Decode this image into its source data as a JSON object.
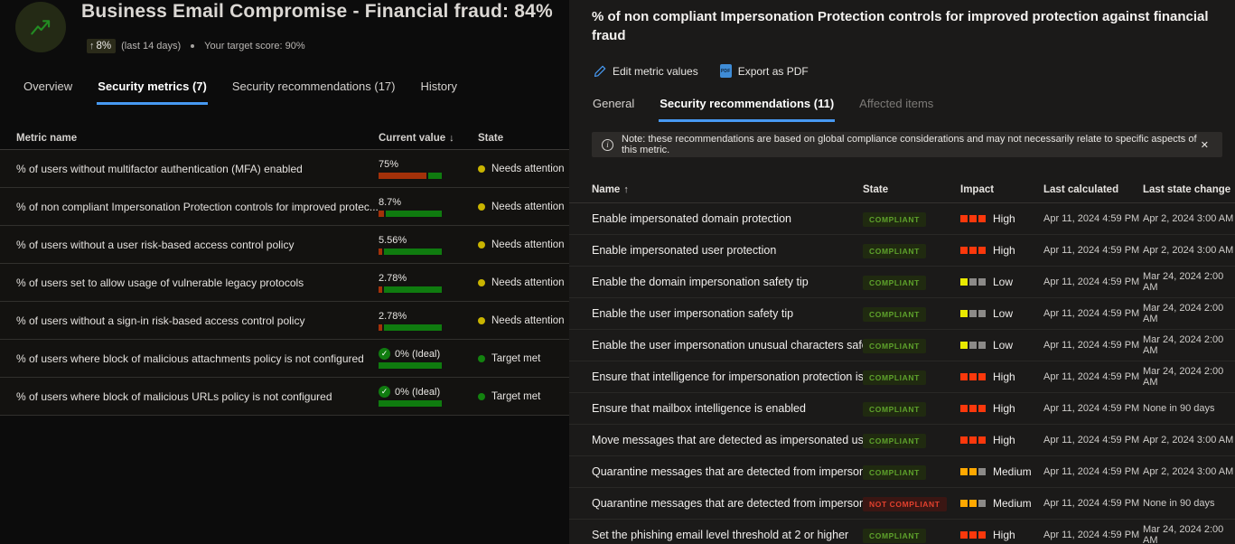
{
  "left": {
    "title": "Business Email Compromise - Financial fraud: 84%",
    "trend_arrow": "↑",
    "trend_delta": "8%",
    "trend_period": "(last 14 days)",
    "target_label": "Your target score: 90%",
    "tabs": [
      {
        "label": "Overview",
        "active": false
      },
      {
        "label": "Security metrics (7)",
        "active": true
      },
      {
        "label": "Security recommendations (17)",
        "active": false
      },
      {
        "label": "History",
        "active": false
      }
    ],
    "table": {
      "col_name": "Metric name",
      "col_value": "Current value",
      "col_value_sort": "↓",
      "col_state": "State",
      "rows": [
        {
          "name": "% of users without multifactor authentication (MFA) enabled",
          "value": "75%",
          "red_pct": 75,
          "state": "Needs attention",
          "ideal": false
        },
        {
          "name": "% of non compliant Impersonation Protection controls for improved protec...",
          "value": "8.7%",
          "red_pct": 8.7,
          "state": "Needs attention",
          "ideal": false
        },
        {
          "name": "% of users without a user risk-based access control policy",
          "value": "5.56%",
          "red_pct": 5.56,
          "state": "Needs attention",
          "ideal": false
        },
        {
          "name": "% of users set to allow usage of vulnerable legacy protocols",
          "value": "2.78%",
          "red_pct": 2.78,
          "state": "Needs attention",
          "ideal": false
        },
        {
          "name": "% of users without a sign-in risk-based access control policy",
          "value": "2.78%",
          "red_pct": 2.78,
          "state": "Needs attention",
          "ideal": false
        },
        {
          "name": "% of users where block of malicious attachments policy is not configured",
          "value": "0% (Ideal)",
          "red_pct": 0,
          "state": "Target met",
          "ideal": true
        },
        {
          "name": "% of users where block of malicious URLs policy is not configured",
          "value": "0% (Ideal)",
          "red_pct": 0,
          "state": "Target met",
          "ideal": true
        }
      ]
    }
  },
  "panel": {
    "title": "% of non compliant Impersonation Protection controls for improved protection against financial fraud",
    "actions": {
      "edit": "Edit metric values",
      "export": "Export as PDF",
      "pdf_icon_text": "PDF"
    },
    "tabs": [
      {
        "label": "General",
        "active": false,
        "disabled": false
      },
      {
        "label": "Security recommendations (11)",
        "active": true,
        "disabled": false
      },
      {
        "label": "Affected items",
        "active": false,
        "disabled": true
      }
    ],
    "note": {
      "text": "Note: these recommendations are based on global compliance considerations and may not necessarily relate to specific aspects of this metric.",
      "close": "✕",
      "info_glyph": "i"
    },
    "table": {
      "col_name": "Name",
      "col_name_sort": "↑",
      "col_state": "State",
      "col_impact": "Impact",
      "col_calc": "Last calculated",
      "col_change": "Last state change",
      "rows": [
        {
          "name": "Enable impersonated domain protection",
          "state": "COMPLIANT",
          "impact": "High",
          "last_calculated": "Apr 11, 2024 4:59 PM",
          "last_state_change": "Apr 2, 2024 3:00 AM"
        },
        {
          "name": "Enable impersonated user protection",
          "state": "COMPLIANT",
          "impact": "High",
          "last_calculated": "Apr 11, 2024 4:59 PM",
          "last_state_change": "Apr 2, 2024 3:00 AM"
        },
        {
          "name": "Enable the domain impersonation safety tip",
          "state": "COMPLIANT",
          "impact": "Low",
          "last_calculated": "Apr 11, 2024 4:59 PM",
          "last_state_change": "Mar 24, 2024 2:00 AM"
        },
        {
          "name": "Enable the user impersonation safety tip",
          "state": "COMPLIANT",
          "impact": "Low",
          "last_calculated": "Apr 11, 2024 4:59 PM",
          "last_state_change": "Mar 24, 2024 2:00 AM"
        },
        {
          "name": "Enable the user impersonation unusual characters safet...",
          "state": "COMPLIANT",
          "impact": "Low",
          "last_calculated": "Apr 11, 2024 4:59 PM",
          "last_state_change": "Mar 24, 2024 2:00 AM"
        },
        {
          "name": "Ensure that intelligence for impersonation protection is...",
          "state": "COMPLIANT",
          "impact": "High",
          "last_calculated": "Apr 11, 2024 4:59 PM",
          "last_state_change": "Mar 24, 2024 2:00 AM"
        },
        {
          "name": "Ensure that mailbox intelligence is enabled",
          "state": "COMPLIANT",
          "impact": "High",
          "last_calculated": "Apr 11, 2024 4:59 PM",
          "last_state_change": "None in 90 days"
        },
        {
          "name": "Move messages that are detected as impersonated use...",
          "state": "COMPLIANT",
          "impact": "High",
          "last_calculated": "Apr 11, 2024 4:59 PM",
          "last_state_change": "Apr 2, 2024 3:00 AM"
        },
        {
          "name": "Quarantine messages that are detected from imperson...",
          "state": "COMPLIANT",
          "impact": "Medium",
          "last_calculated": "Apr 11, 2024 4:59 PM",
          "last_state_change": "Apr 2, 2024 3:00 AM"
        },
        {
          "name": "Quarantine messages that are detected from imperson...",
          "state": "NOT COMPLIANT",
          "impact": "Medium",
          "last_calculated": "Apr 11, 2024 4:59 PM",
          "last_state_change": "None in 90 days"
        },
        {
          "name": "Set the phishing email level threshold at 2 or higher",
          "state": "COMPLIANT",
          "impact": "High",
          "last_calculated": "Apr 11, 2024 4:59 PM",
          "last_state_change": "Mar 24, 2024 2:00 AM"
        }
      ]
    }
  },
  "colors": {
    "accent_blue": "#4799f2",
    "compliant_text": "#5ea22b",
    "not_compliant_text": "#e2402d",
    "impact_high": "#fb380c",
    "impact_medium": "#ffa800",
    "impact_low": "#e9e900",
    "impact_off": "#8c8a88",
    "bar_red": "#a43109",
    "bar_green": "#0f7b0f",
    "needs_attention_dot": "#c9b400",
    "target_met_dot": "#13820f"
  }
}
